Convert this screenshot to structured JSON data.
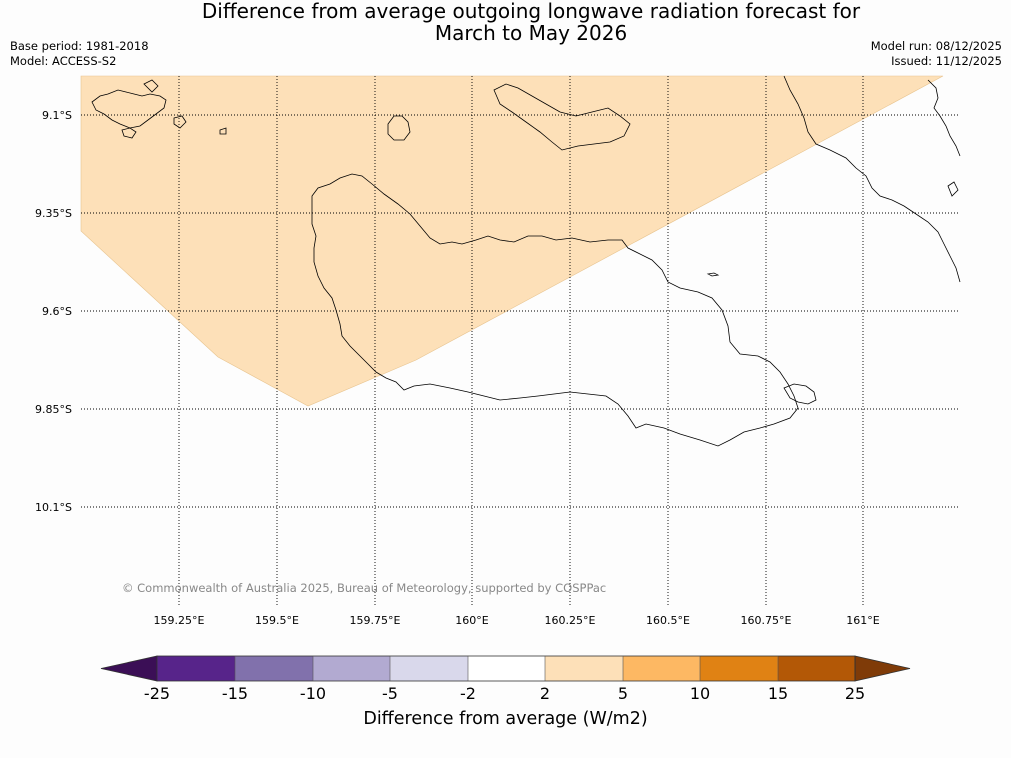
{
  "title": {
    "line1": "Difference from average outgoing longwave radiation forecast for",
    "line2": "March to May 2026"
  },
  "meta_left": {
    "base_period": "Base period: 1981-2018",
    "model": "Model: ACCESS-S2"
  },
  "meta_right": {
    "model_run": "Model run: 08/12/2025",
    "issued": "Issued: 11/12/2025"
  },
  "map": {
    "lat_labels": [
      "9.1°S",
      "9.35°S",
      "9.6°S",
      "9.85°S",
      "10.1°S"
    ],
    "lon_labels": [
      "159.25°E",
      "159.5°E",
      "159.75°E",
      "160°E",
      "160.25°E",
      "160.5°E",
      "160.75°E",
      "161°E"
    ],
    "shaded_category": "2 to 5",
    "shaded_color": "#fde0b8"
  },
  "copyright": "© Commonwealth of Australia 2025, Bureau of Meteorology, supported by COSPPac",
  "colorbar": {
    "title": "Difference from average (W/m2)",
    "ticks": [
      "-25",
      "-15",
      "-10",
      "-5",
      "-2",
      "2",
      "5",
      "10",
      "15",
      "25"
    ],
    "colors": [
      "#3b0f56",
      "#57248a",
      "#8171ac",
      "#b2aad1",
      "#d9d8eb",
      "#ffffff",
      "#fde0b8",
      "#fdb863",
      "#e08214",
      "#b35806",
      "#7f3b08"
    ]
  }
}
